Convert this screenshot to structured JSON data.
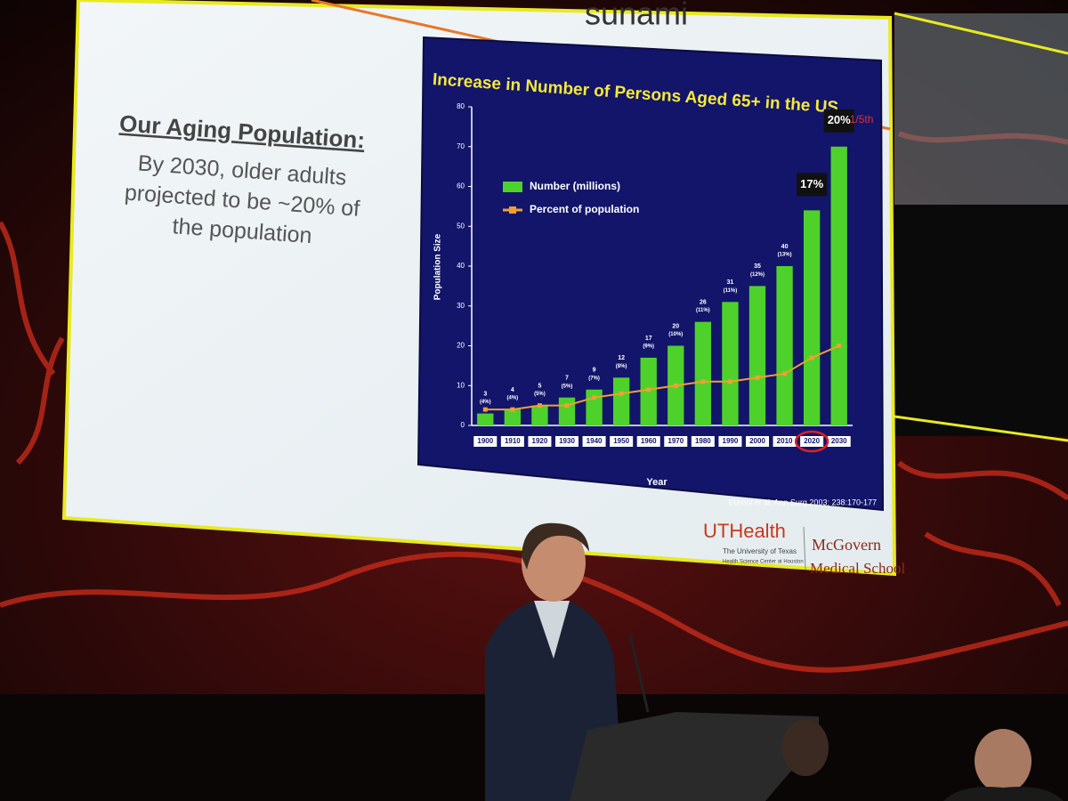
{
  "slide": {
    "title": "sunami",
    "heading": "Our Aging Population:",
    "body": [
      "By 2030, older adults",
      "projected to be ~20% of",
      "the population"
    ],
    "logo": {
      "brand": "UTHealth",
      "line1": "The University of Texas",
      "line2": "Health Science Center at Houston",
      "school1": "McGovern",
      "school2": "Medical School"
    }
  },
  "chart_data": {
    "type": "bar",
    "title": "Increase in Number of Persons Aged 65+ in the US",
    "x_label": "Year",
    "y_label": "Population Size",
    "categories": [
      "1900",
      "1910",
      "1920",
      "1930",
      "1940",
      "1950",
      "1960",
      "1970",
      "1980",
      "1990",
      "2000",
      "2010",
      "2020",
      "2030"
    ],
    "series": [
      {
        "name": "Number (millions)",
        "color": "#4ed12b",
        "values": [
          3,
          4,
          5,
          7,
          9,
          12,
          17,
          20,
          26,
          31,
          35,
          40,
          54,
          70
        ],
        "value_labels": [
          "3",
          "4",
          "5",
          "7",
          "9",
          "12",
          "17",
          "20",
          "26",
          "31",
          "35",
          "40",
          null,
          null
        ]
      },
      {
        "name": "Percent of population",
        "color": "#f0a030",
        "type": "line",
        "values": [
          4,
          4,
          5,
          5,
          7,
          8,
          9,
          10,
          11,
          11,
          12,
          13,
          17,
          20
        ],
        "value_labels": [
          "(4%)",
          "(4%)",
          "(5%)",
          "(5%)",
          "(7%)",
          "(8%)",
          "(9%)",
          "(10%)",
          "(11%)",
          "(11%)",
          "(12%)",
          "(13%)",
          "17%",
          "20%"
        ]
      }
    ],
    "ylim": [
      0,
      80
    ],
    "yticks": [
      0,
      10,
      20,
      30,
      40,
      50,
      60,
      70,
      80
    ],
    "annotation": "1/5th",
    "source": "Etzioni et al. Ann Surg 2003; 238:170-177"
  }
}
